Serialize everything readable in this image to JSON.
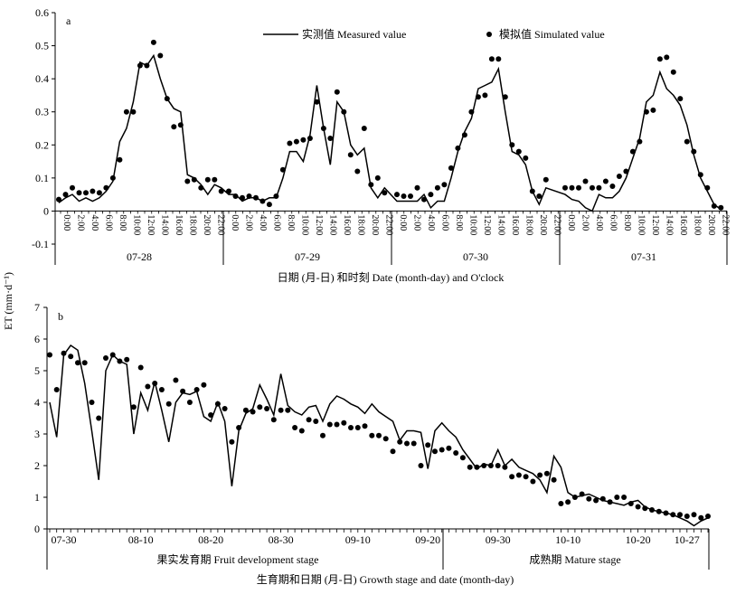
{
  "ylabel": "ET (mm·d⁻¹)",
  "chart_data": [
    {
      "panel": "a",
      "type": "line",
      "xlabel": "日期 (月-日) 和时刻 Date (month-day) and O'clock",
      "ylim": [
        -0.1,
        0.6
      ],
      "yticks": [
        "-0.1",
        "0",
        "0.1",
        "0.2",
        "0.3",
        "0.4",
        "0.5",
        "0.6"
      ],
      "hour_labels": [
        "0:00",
        "2:00",
        "4:00",
        "6:00",
        "8:00",
        "10:00",
        "12:00",
        "14:00",
        "16:00",
        "18:00",
        "20:00",
        "22:00"
      ],
      "days": [
        "07-28",
        "07-29",
        "07-30",
        "07-31"
      ],
      "series": [
        {
          "name": "实测值 Measured value",
          "style": "line",
          "values": [
            0.025,
            0.04,
            0.05,
            0.03,
            0.04,
            0.03,
            0.04,
            0.06,
            0.09,
            0.21,
            0.25,
            0.33,
            0.45,
            0.44,
            0.47,
            0.4,
            0.34,
            0.31,
            0.3,
            0.11,
            0.1,
            0.08,
            0.05,
            0.08,
            0.07,
            0.05,
            0.05,
            0.03,
            0.04,
            0.04,
            0.03,
            0.04,
            0.04,
            0.1,
            0.18,
            0.18,
            0.15,
            0.23,
            0.38,
            0.25,
            0.14,
            0.33,
            0.3,
            0.2,
            0.17,
            0.19,
            0.07,
            0.04,
            0.07,
            0.03,
            0.03,
            0.03,
            0.03,
            0.05,
            0.01,
            0.03,
            0.03,
            0.1,
            0.18,
            0.24,
            0.28,
            0.37,
            0.38,
            0.39,
            0.43,
            0.3,
            0.18,
            0.17,
            0.14,
            0.06,
            0.02,
            0.07,
            0.05,
            0.035,
            0.03,
            0.01,
            0.0,
            0.05,
            0.04,
            0.04,
            0.06,
            0.1,
            0.16,
            0.22,
            0.33,
            0.35,
            0.42,
            0.37,
            0.35,
            0.32,
            0.26,
            0.17,
            0.1,
            0.06,
            0.02,
            0.005
          ]
        },
        {
          "name": "模拟值 Simulated value",
          "style": "dots",
          "values": [
            0.035,
            0.05,
            0.07,
            0.055,
            0.055,
            0.06,
            0.055,
            0.07,
            0.1,
            0.155,
            0.3,
            0.3,
            0.44,
            0.44,
            0.51,
            0.47,
            0.34,
            0.255,
            0.26,
            0.09,
            0.095,
            0.07,
            0.095,
            0.095,
            0.06,
            0.06,
            0.045,
            0.04,
            0.045,
            0.04,
            0.03,
            0.02,
            0.045,
            0.125,
            0.205,
            0.21,
            0.215,
            0.22,
            0.33,
            0.25,
            0.22,
            0.36,
            0.3,
            0.17,
            0.12,
            0.25,
            0.08,
            0.1,
            0.055,
            0.05,
            0.045,
            0.045,
            0.07,
            0.035,
            0.05,
            0.07,
            0.08,
            0.13,
            0.19,
            0.23,
            0.3,
            0.345,
            0.35,
            0.46,
            0.46,
            0.345,
            0.2,
            0.18,
            0.16,
            0.06,
            0.045,
            0.095,
            0.07,
            0.07,
            0.07,
            0.09,
            0.07,
            0.07,
            0.09,
            0.075,
            0.105,
            0.12,
            0.18,
            0.21,
            0.3,
            0.305,
            0.46,
            0.465,
            0.42,
            0.34,
            0.21,
            0.18,
            0.11,
            0.07,
            0.015,
            0.01
          ]
        }
      ]
    },
    {
      "panel": "b",
      "type": "line",
      "xlabel": "生育期和日期 (月-日) Growth stage and date (month-day)",
      "ylim": [
        0,
        7
      ],
      "yticks": [
        "0",
        "1",
        "2",
        "3",
        "4",
        "5",
        "6",
        "7"
      ],
      "date_labels": [
        "07-30",
        "08-10",
        "08-20",
        "08-30",
        "09-10",
        "09-20",
        "09-30",
        "10-10",
        "10-20",
        "10-27"
      ],
      "stages": [
        "果实发育期 Fruit development stage",
        "成熟期 Mature stage"
      ],
      "series": [
        {
          "name": "实测值 Measured value",
          "style": "line",
          "values": [
            4.0,
            2.9,
            5.5,
            5.8,
            5.65,
            4.6,
            3.1,
            1.55,
            5.0,
            5.5,
            5.3,
            5.2,
            3.0,
            4.3,
            3.75,
            4.65,
            3.75,
            2.75,
            4.0,
            4.3,
            4.25,
            4.35,
            3.55,
            3.4,
            4.0,
            3.4,
            1.35,
            3.1,
            3.65,
            3.8,
            4.55,
            4.1,
            3.6,
            4.9,
            3.9,
            3.7,
            3.6,
            3.85,
            3.9,
            3.4,
            3.95,
            4.2,
            4.1,
            3.95,
            3.85,
            3.65,
            3.95,
            3.7,
            3.55,
            3.4,
            2.8,
            3.1,
            3.1,
            3.05,
            1.9,
            3.1,
            3.35,
            3.1,
            2.9,
            2.5,
            2.2,
            1.9,
            2.05,
            2.0,
            2.5,
            2.0,
            2.2,
            1.95,
            1.85,
            1.75,
            1.55,
            1.15,
            2.3,
            1.95,
            1.15,
            1.0,
            1.05,
            1.1,
            1.0,
            0.9,
            0.85,
            0.8,
            0.75,
            0.85,
            0.9,
            0.7,
            0.6,
            0.55,
            0.5,
            0.45,
            0.35,
            0.25,
            0.1,
            0.25,
            0.35
          ]
        },
        {
          "name": "模拟值 Simulated value",
          "style": "dots",
          "values": [
            5.5,
            4.4,
            5.55,
            5.45,
            5.25,
            5.25,
            4.0,
            3.5,
            5.4,
            5.5,
            5.3,
            5.35,
            3.85,
            5.1,
            4.5,
            4.6,
            4.4,
            3.95,
            4.7,
            4.35,
            4.0,
            4.4,
            4.55,
            3.6,
            3.95,
            3.8,
            2.75,
            3.2,
            3.75,
            3.7,
            3.85,
            3.8,
            3.45,
            3.75,
            3.75,
            3.2,
            3.1,
            3.45,
            3.4,
            2.95,
            3.3,
            3.3,
            3.35,
            3.2,
            3.2,
            3.25,
            2.95,
            2.95,
            2.85,
            2.45,
            2.75,
            2.7,
            2.7,
            2.0,
            2.65,
            2.45,
            2.5,
            2.55,
            2.4,
            2.25,
            1.95,
            1.95,
            2.0,
            2.0,
            2.0,
            1.95,
            1.65,
            1.7,
            1.65,
            1.5,
            1.7,
            1.75,
            1.55,
            0.8,
            0.85,
            1.0,
            1.1,
            0.95,
            0.9,
            0.95,
            0.85,
            1.0,
            1.0,
            0.8,
            0.7,
            0.65,
            0.6,
            0.55,
            0.5,
            0.45,
            0.45,
            0.4,
            0.45,
            0.35,
            0.4
          ]
        }
      ]
    }
  ]
}
